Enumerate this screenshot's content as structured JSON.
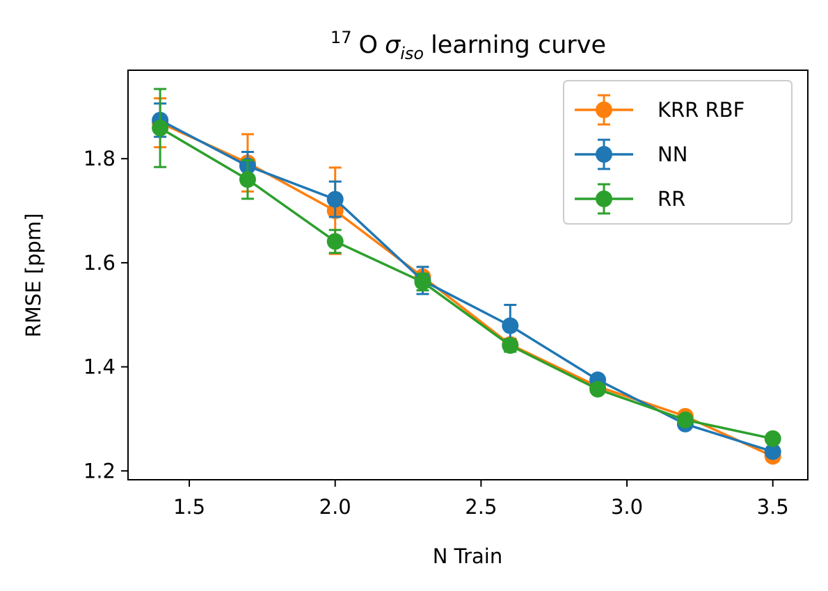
{
  "chart_data": {
    "type": "line",
    "title": {
      "superscript": "17",
      "element": "O",
      "symbol": "σ",
      "subscript": "iso",
      "rest": "learning curve"
    },
    "xlabel": "N Train",
    "ylabel": "RMSE [ppm]",
    "xlim": [
      1.29,
      3.62
    ],
    "ylim": [
      1.183,
      1.97
    ],
    "xticks": [
      1.5,
      2.0,
      2.5,
      3.0,
      3.5
    ],
    "xtick_labels": [
      "1.5",
      "2.0",
      "2.5",
      "3.0",
      "3.5"
    ],
    "yticks": [
      1.2,
      1.4,
      1.6,
      1.8
    ],
    "ytick_labels": [
      "1.2",
      "1.4",
      "1.6",
      "1.8"
    ],
    "grid": false,
    "legend_position": "top-right",
    "x": [
      1.4,
      1.7,
      2.0,
      2.3,
      2.6,
      2.9,
      3.2,
      3.5
    ],
    "series": [
      {
        "name": "KRR RBF",
        "color": "#ff7f0e",
        "values": [
          1.869,
          1.792,
          1.7,
          1.573,
          1.443,
          1.362,
          1.305,
          1.228
        ],
        "errors": [
          0.047,
          0.055,
          0.083,
          0.019,
          0.011,
          0.008,
          0.008,
          0.009
        ]
      },
      {
        "name": "NN",
        "color": "#1f77b4",
        "values": [
          1.874,
          1.786,
          1.722,
          1.566,
          1.479,
          1.375,
          1.29,
          1.237
        ],
        "errors": [
          0.032,
          0.027,
          0.034,
          0.026,
          0.04,
          0.008,
          0.008,
          0.008
        ]
      },
      {
        "name": "RR",
        "color": "#2ca02c",
        "values": [
          1.859,
          1.76,
          1.641,
          1.563,
          1.441,
          1.357,
          1.298,
          1.262
        ],
        "errors": [
          0.075,
          0.037,
          0.022,
          0.016,
          0.012,
          0.007,
          0.006,
          0.006
        ]
      }
    ]
  }
}
